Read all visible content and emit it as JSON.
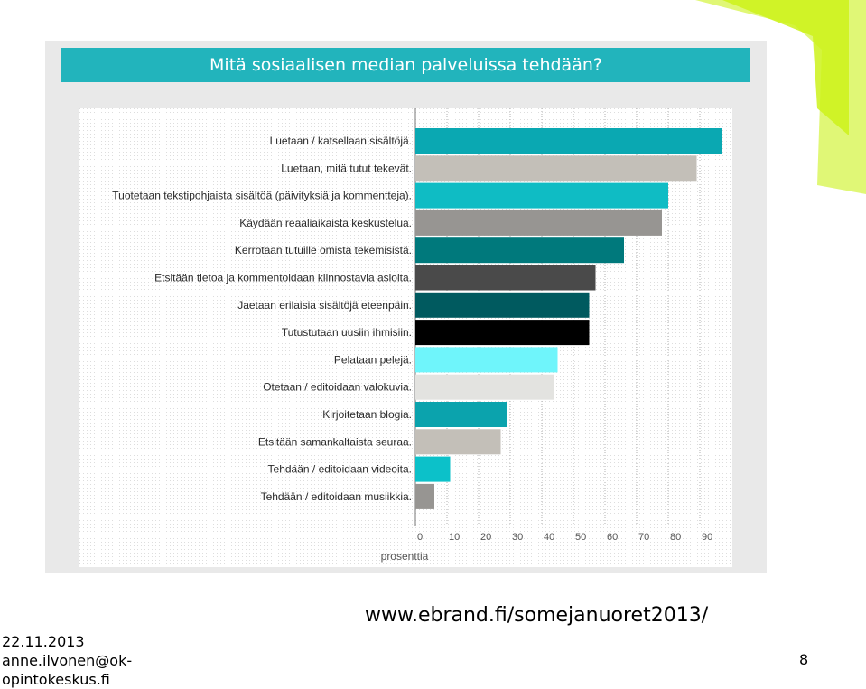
{
  "slide": {
    "source_url": "www.ebrand.fi/somejanuoret2013/",
    "date": "22.11.2013",
    "author_line1": "anne.ilvonen@ok-",
    "author_line2": "opintokeskus.fi",
    "page_number": "8",
    "accent_color": "#ccf21a"
  },
  "chart_data": {
    "type": "bar",
    "orientation": "horizontal",
    "title": "Mitä sosiaalisen median palveluissa tehdään?",
    "xlabel": "prosenttia",
    "ylabel": "",
    "xlim": [
      0,
      100
    ],
    "x_ticks": [
      "0",
      "10",
      "20",
      "30",
      "40",
      "50",
      "60",
      "70",
      "80",
      "90"
    ],
    "grid": true,
    "categories": [
      "Luetaan / katsellaan sisältöjä.",
      "Luetaan, mitä tutut tekevät.",
      "Tuotetaan tekstipohjaista sisältöä (päivityksiä ja kommentteja).",
      "Käydään reaaliaikaista keskustelua.",
      "Kerrotaan tutuille omista tekemisistä.",
      "Etsitään tietoa ja kommentoidaan kiinnostavia asioita.",
      "Jaetaan erilaisia sisältöjä eteenpäin.",
      "Tutustutaan uusiin ihmisiin.",
      "Pelataan pelejä.",
      "Otetaan / editoidaan valokuvia.",
      "Kirjoitetaan blogia.",
      "Etsitään samankaltaista seuraa.",
      "Tehdään / editoidaan videoita.",
      "Tehdään / editoidaan musiikkia."
    ],
    "values": [
      97,
      89,
      80,
      78,
      66,
      57,
      55,
      55,
      45,
      44,
      29,
      27,
      11,
      6
    ],
    "colors": [
      "#0aa8b2",
      "#c3bfb8",
      "#0fbcc4",
      "#979592",
      "#00797c",
      "#4a4a4a",
      "#005a5f",
      "#000000",
      "#6ff5fb",
      "#e3e3e0",
      "#0ba3ad",
      "#c3bfb8",
      "#0cc1c9",
      "#979592"
    ]
  }
}
